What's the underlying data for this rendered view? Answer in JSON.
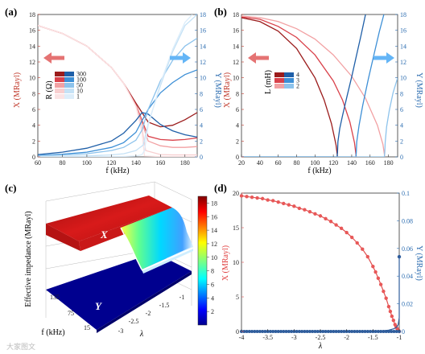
{
  "panel_labels": [
    "(a)",
    "(b)",
    "(c)",
    "(d)"
  ],
  "watermark": "大家图文",
  "colors": {
    "red_dark": "#9b1c1c",
    "red_mid": "#d9414a",
    "red_light": "#f2a1a3",
    "red_pale": "#f8cfd0",
    "blue_dark": "#1f5fa8",
    "blue_mid": "#3d8fd6",
    "blue_light": "#8dc3ec",
    "blue_pale": "#c5e2f6",
    "arrow_red": "#e57373",
    "arrow_blue": "#64b5f6"
  },
  "chart_data": [
    {
      "panel": "(a)",
      "type": "line",
      "xlabel": "f (kHz)",
      "ylabel_left": "X (MRayl)",
      "ylabel_right": "Y (MRayl)",
      "xlim": [
        60,
        190
      ],
      "ylim": [
        0,
        18
      ],
      "xticks": [
        60,
        80,
        100,
        120,
        140,
        160,
        180
      ],
      "yticks": [
        0,
        2,
        4,
        6,
        8,
        10,
        12,
        14,
        16,
        18
      ],
      "legend_title": "R (Ω)",
      "legend_labels": [
        "300",
        "100",
        "50",
        "10",
        "1"
      ],
      "series": [
        {
          "side": "X",
          "name": "300",
          "x": [
            60,
            80,
            100,
            120,
            130,
            140,
            150,
            160,
            170,
            180,
            190
          ],
          "y": [
            16.6,
            15.6,
            14.0,
            11.3,
            9.3,
            6.8,
            4.4,
            3.8,
            4.0,
            4.7,
            5.6
          ]
        },
        {
          "side": "X",
          "name": "100",
          "x": [
            60,
            80,
            100,
            120,
            130,
            140,
            145,
            150,
            160,
            170,
            180,
            190
          ],
          "y": [
            16.6,
            15.6,
            14.0,
            11.3,
            9.3,
            6.6,
            4.6,
            2.6,
            2.2,
            2.1,
            2.2,
            2.4
          ]
        },
        {
          "side": "X",
          "name": "50",
          "x": [
            60,
            80,
            100,
            120,
            130,
            140,
            145,
            150,
            160,
            170,
            180,
            190
          ],
          "y": [
            16.6,
            15.6,
            14.0,
            11.3,
            9.3,
            6.5,
            4.3,
            2.0,
            1.4,
            1.2,
            1.2,
            1.3
          ]
        },
        {
          "side": "X",
          "name": "10",
          "x": [
            60,
            80,
            100,
            120,
            130,
            140,
            145,
            148,
            160,
            170,
            180,
            190
          ],
          "y": [
            16.6,
            15.6,
            14.0,
            11.3,
            9.3,
            6.4,
            3.6,
            0.8,
            0.3,
            0.25,
            0.25,
            0.25
          ]
        },
        {
          "side": "X",
          "name": "1",
          "x": [
            60,
            80,
            100,
            120,
            130,
            140,
            145,
            147,
            160,
            190
          ],
          "y": [
            16.6,
            15.6,
            14.0,
            11.3,
            9.3,
            6.4,
            3.0,
            0.1,
            0.05,
            0.05
          ]
        },
        {
          "side": "Y",
          "name": "300",
          "x": [
            60,
            80,
            100,
            120,
            130,
            140,
            145,
            150,
            160,
            170,
            180,
            190
          ],
          "y": [
            0.3,
            0.6,
            1.1,
            2.0,
            3.0,
            4.6,
            5.6,
            5.4,
            4.1,
            3.3,
            2.8,
            2.5
          ]
        },
        {
          "side": "Y",
          "name": "100",
          "x": [
            60,
            80,
            100,
            120,
            130,
            140,
            145,
            150,
            160,
            170,
            180,
            190
          ],
          "y": [
            0.2,
            0.35,
            0.6,
            1.2,
            1.8,
            3.1,
            4.6,
            6.0,
            8.1,
            9.4,
            10.4,
            11.0
          ]
        },
        {
          "side": "Y",
          "name": "50",
          "x": [
            60,
            80,
            100,
            120,
            130,
            140,
            145,
            150,
            160,
            170,
            180,
            190
          ],
          "y": [
            0.15,
            0.25,
            0.4,
            0.8,
            1.2,
            2.1,
            3.4,
            6.0,
            9.6,
            12.2,
            14.0,
            15.0
          ]
        },
        {
          "side": "Y",
          "name": "10",
          "x": [
            60,
            80,
            100,
            120,
            130,
            140,
            146,
            150,
            160,
            170,
            180,
            190
          ],
          "y": [
            0.05,
            0.08,
            0.12,
            0.25,
            0.4,
            0.8,
            1.5,
            4.2,
            9.0,
            13.3,
            16.6,
            18.0
          ]
        },
        {
          "side": "Y",
          "name": "1",
          "x": [
            60,
            120,
            140,
            145,
            147,
            150,
            160,
            170,
            180,
            186
          ],
          "y": [
            0.0,
            0.02,
            0.1,
            0.3,
            0.8,
            4.0,
            9.3,
            13.6,
            17.0,
            18.0
          ]
        }
      ]
    },
    {
      "panel": "(b)",
      "type": "line",
      "xlabel": "f (kHz)",
      "ylabel_left": "X (MRayl)",
      "ylabel_right": "Y (MRayl)",
      "xlim": [
        20,
        190
      ],
      "ylim": [
        0,
        18
      ],
      "xticks": [
        20,
        40,
        60,
        80,
        100,
        120,
        140,
        160,
        180
      ],
      "yticks": [
        0,
        2,
        4,
        6,
        8,
        10,
        12,
        14,
        16,
        18
      ],
      "legend_title": "L (mH)",
      "legend_labels": [
        "4",
        "3",
        "2"
      ],
      "series": [
        {
          "side": "X",
          "name": "4",
          "x": [
            20,
            40,
            60,
            80,
            100,
            110,
            118,
            123,
            124.5
          ],
          "y": [
            17.6,
            17.1,
            15.9,
            13.7,
            10.0,
            7.2,
            4.2,
            1.5,
            0
          ]
        },
        {
          "side": "X",
          "name": "3",
          "x": [
            20,
            40,
            60,
            80,
            100,
            120,
            130,
            138,
            143,
            145
          ],
          "y": [
            17.7,
            17.4,
            16.5,
            15.1,
            12.9,
            9.6,
            7.2,
            4.4,
            1.8,
            0
          ]
        },
        {
          "side": "X",
          "name": "2",
          "x": [
            20,
            40,
            60,
            80,
            100,
            120,
            140,
            155,
            168,
            174,
            176
          ],
          "y": [
            17.8,
            17.6,
            17.1,
            16.2,
            14.9,
            12.9,
            10.2,
            7.4,
            4.0,
            1.6,
            0
          ]
        },
        {
          "side": "Y",
          "name": "4",
          "x": [
            20,
            124,
            124.5,
            125,
            127,
            130,
            135,
            140,
            145,
            150,
            155
          ],
          "y": [
            0,
            0,
            0.5,
            1.9,
            3.6,
            5.2,
            7.7,
            10.1,
            12.7,
            15.3,
            18.0
          ]
        },
        {
          "side": "Y",
          "name": "3",
          "x": [
            20,
            144.5,
            145,
            145.5,
            148,
            152,
            158,
            164,
            170,
            175
          ],
          "y": [
            0,
            0,
            0.5,
            1.9,
            4.0,
            6.5,
            9.8,
            12.8,
            15.8,
            18.0
          ]
        },
        {
          "side": "Y",
          "name": "2",
          "x": [
            20,
            175.5,
            176,
            176.5,
            178,
            181,
            185,
            190
          ],
          "y": [
            0,
            0,
            0.5,
            1.9,
            3.8,
            5.9,
            8.1,
            10.0
          ]
        }
      ]
    },
    {
      "panel": "(c)",
      "type": "surface",
      "zlabel": "Effective impedance (MRayl)",
      "xlabel": "λ",
      "ylabel": "f (kHz)",
      "x_ticks": [
        "-3",
        "-2.5",
        "-2",
        "-1.5",
        "-1"
      ],
      "y_ticks": [
        "135",
        "75",
        "15"
      ],
      "colorbar_ticks": [
        "2",
        "4",
        "6",
        "8",
        "10",
        "12",
        "14",
        "16",
        "18"
      ],
      "colorbar_range": [
        0,
        19
      ],
      "surface_labels": [
        "X",
        "Y"
      ]
    },
    {
      "panel": "(d)",
      "type": "line",
      "xlabel": "λ",
      "ylabel_left": "X (MRayl)",
      "ylabel_right": "Y (MRayl)",
      "xlim": [
        -4,
        -1
      ],
      "ylim_left": [
        0,
        20
      ],
      "ylim_right": [
        0,
        0.1
      ],
      "xticks": [
        "-4",
        "-3.5",
        "-3",
        "-2.5",
        "-2",
        "-1.5",
        "-1"
      ],
      "yticks_left": [
        "0",
        "5",
        "10",
        "15",
        "20"
      ],
      "yticks_right": [
        "0",
        "0.02",
        "0.04",
        "0.06",
        "0.08",
        "0.1"
      ],
      "series": [
        {
          "side": "X",
          "x": [
            -4,
            -3.9,
            -3.8,
            -3.7,
            -3.6,
            -3.5,
            -3.4,
            -3.3,
            -3.2,
            -3.1,
            -3.0,
            -2.9,
            -2.8,
            -2.7,
            -2.6,
            -2.5,
            -2.4,
            -2.3,
            -2.2,
            -2.1,
            -2.0,
            -1.9,
            -1.8,
            -1.7,
            -1.6,
            -1.5,
            -1.45,
            -1.4,
            -1.35,
            -1.3,
            -1.25,
            -1.2,
            -1.17,
            -1.14,
            -1.11,
            -1.08,
            -1.06,
            -1.04,
            -1.02,
            -1.01,
            -1.0
          ],
          "y": [
            19.6,
            19.5,
            19.4,
            19.3,
            19.2,
            19.0,
            18.9,
            18.7,
            18.5,
            18.3,
            18.1,
            17.8,
            17.6,
            17.3,
            17.0,
            16.7,
            16.3,
            15.9,
            15.4,
            14.9,
            14.3,
            13.6,
            12.8,
            11.9,
            10.8,
            9.4,
            8.6,
            7.7,
            6.8,
            5.8,
            4.8,
            3.6,
            2.9,
            2.2,
            1.6,
            1.0,
            0.7,
            0.4,
            0.2,
            0.1,
            0.0
          ]
        },
        {
          "side": "Y",
          "x": [
            -4,
            -3.5,
            -3.0,
            -2.5,
            -2.0,
            -1.5,
            -1.3,
            -1.2,
            -1.1,
            -1.05,
            -1.02,
            -1.0,
            -1.0,
            -1.0
          ],
          "y": [
            0.0,
            0.0,
            0.0,
            0.0,
            0.0,
            0.0002,
            0.0005,
            0.001,
            0.002,
            0.003,
            0.005,
            0.01,
            0.03,
            0.054
          ]
        }
      ]
    }
  ]
}
